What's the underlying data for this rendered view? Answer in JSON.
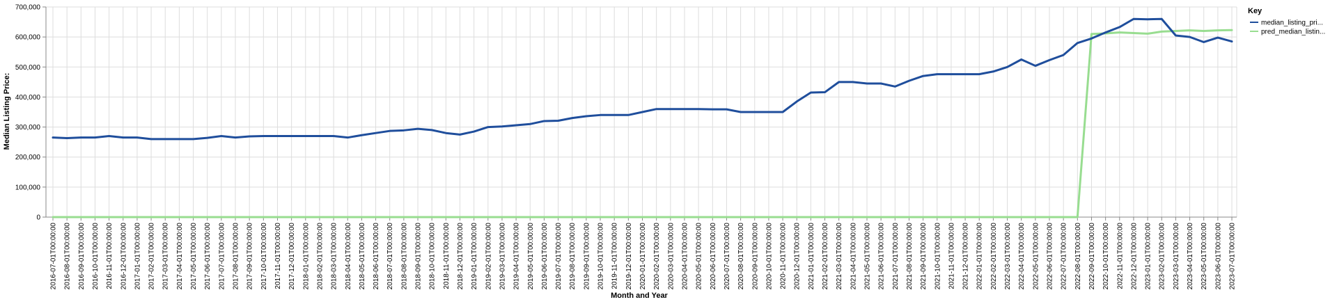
{
  "chart_data": {
    "type": "line",
    "xlabel": "Month and Year",
    "ylabel": "Median Listing Price:",
    "ylim": [
      0,
      700000
    ],
    "yticks": [
      "0",
      "100,000",
      "200,000",
      "300,000",
      "400,000",
      "500,000",
      "600,000",
      "700,000"
    ],
    "grid": true,
    "legend": {
      "title": "Key",
      "placement": "top-right"
    },
    "x": [
      "2016-07-01T00:00:00",
      "2016-08-01T00:00:00",
      "2016-09-01T00:00:00",
      "2016-10-01T00:00:00",
      "2016-11-01T00:00:00",
      "2016-12-01T00:00:00",
      "2017-01-01T00:00:00",
      "2017-02-01T00:00:00",
      "2017-03-01T00:00:00",
      "2017-04-01T00:00:00",
      "2017-05-01T00:00:00",
      "2017-06-01T00:00:00",
      "2017-07-01T00:00:00",
      "2017-08-01T00:00:00",
      "2017-09-01T00:00:00",
      "2017-10-01T00:00:00",
      "2017-11-01T00:00:00",
      "2017-12-01T00:00:00",
      "2018-01-01T00:00:00",
      "2018-02-01T00:00:00",
      "2018-03-01T00:00:00",
      "2018-04-01T00:00:00",
      "2018-05-01T00:00:00",
      "2018-06-01T00:00:00",
      "2018-07-01T00:00:00",
      "2018-08-01T00:00:00",
      "2018-09-01T00:00:00",
      "2018-10-01T00:00:00",
      "2018-11-01T00:00:00",
      "2018-12-01T00:00:00",
      "2019-01-01T00:00:00",
      "2019-02-01T00:00:00",
      "2019-03-01T00:00:00",
      "2019-04-01T00:00:00",
      "2019-05-01T00:00:00",
      "2019-06-01T00:00:00",
      "2019-07-01T00:00:00",
      "2019-08-01T00:00:00",
      "2019-09-01T00:00:00",
      "2019-10-01T00:00:00",
      "2019-11-01T00:00:00",
      "2019-12-01T00:00:00",
      "2020-01-01T00:00:00",
      "2020-02-01T00:00:00",
      "2020-03-01T00:00:00",
      "2020-04-01T00:00:00",
      "2020-05-01T00:00:00",
      "2020-06-01T00:00:00",
      "2020-07-01T00:00:00",
      "2020-08-01T00:00:00",
      "2020-09-01T00:00:00",
      "2020-10-01T00:00:00",
      "2020-11-01T00:00:00",
      "2020-12-01T00:00:00",
      "2021-01-01T00:00:00",
      "2021-02-01T00:00:00",
      "2021-03-01T00:00:00",
      "2021-04-01T00:00:00",
      "2021-05-01T00:00:00",
      "2021-06-01T00:00:00",
      "2021-07-01T00:00:00",
      "2021-08-01T00:00:00",
      "2021-09-01T00:00:00",
      "2021-10-01T00:00:00",
      "2021-11-01T00:00:00",
      "2021-12-01T00:00:00",
      "2022-01-01T00:00:00",
      "2022-02-01T00:00:00",
      "2022-03-01T00:00:00",
      "2022-04-01T00:00:00",
      "2022-05-01T00:00:00",
      "2022-06-01T00:00:00",
      "2022-07-01T00:00:00",
      "2022-08-01T00:00:00",
      "2022-09-01T00:00:00",
      "2022-10-01T00:00:00",
      "2022-11-01T00:00:00",
      "2022-12-01T00:00:00",
      "2023-01-01T00:00:00",
      "2023-02-01T00:00:00",
      "2023-03-01T00:00:00",
      "2023-04-01T00:00:00",
      "2023-05-01T00:00:00",
      "2023-06-01T00:00:00",
      "2023-07-01T00:00:00"
    ],
    "series": [
      {
        "name": "median_listing_pri...",
        "color": "#1f4e9c",
        "values": [
          265000,
          263000,
          265000,
          265000,
          270000,
          265000,
          265000,
          260000,
          260000,
          260000,
          260000,
          264000,
          270000,
          265000,
          269000,
          270000,
          270000,
          270000,
          270000,
          270000,
          270000,
          265000,
          273000,
          280000,
          287000,
          289000,
          294000,
          290000,
          280000,
          275000,
          285000,
          300000,
          302000,
          306000,
          310000,
          320000,
          321000,
          330000,
          336000,
          340000,
          340000,
          340000,
          350000,
          360000,
          360000,
          360000,
          360000,
          359000,
          359000,
          350000,
          350000,
          350000,
          350000,
          385000,
          415000,
          416000,
          450000,
          450000,
          445000,
          445000,
          435000,
          454000,
          470000,
          476000,
          476000,
          476000,
          476000,
          485000,
          500000,
          525000,
          504000,
          523000,
          540000,
          580000,
          595000,
          615000,
          633000,
          660000,
          659000,
          660000,
          605000,
          600000,
          583000,
          598000,
          585000
        ]
      },
      {
        "name": "pred_median_listin...",
        "color": "#98dd90",
        "values": [
          0,
          0,
          0,
          0,
          0,
          0,
          0,
          0,
          0,
          0,
          0,
          0,
          0,
          0,
          0,
          0,
          0,
          0,
          0,
          0,
          0,
          0,
          0,
          0,
          0,
          0,
          0,
          0,
          0,
          0,
          0,
          0,
          0,
          0,
          0,
          0,
          0,
          0,
          0,
          0,
          0,
          0,
          0,
          0,
          0,
          0,
          0,
          0,
          0,
          0,
          0,
          0,
          0,
          0,
          0,
          0,
          0,
          0,
          0,
          0,
          0,
          0,
          0,
          0,
          0,
          0,
          0,
          0,
          0,
          0,
          0,
          0,
          0,
          0,
          610000,
          612000,
          615000,
          613000,
          611000,
          618000,
          620000,
          622000,
          620000,
          622000,
          623000
        ]
      }
    ]
  }
}
